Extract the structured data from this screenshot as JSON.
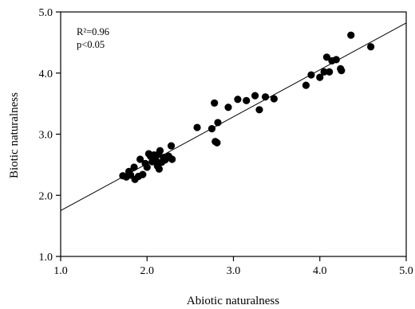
{
  "chart_data": {
    "type": "scatter",
    "xlabel": "Abiotic naturalness",
    "ylabel": "Biotic naturalness",
    "xlim": [
      1.0,
      5.0
    ],
    "ylim": [
      1.0,
      5.0
    ],
    "xticks": [
      "1.0",
      "2.0",
      "3.0",
      "4.0",
      "5.0"
    ],
    "yticks": [
      "1.0",
      "2.0",
      "3.0",
      "4.0",
      "5.0"
    ],
    "grid": false,
    "annotations": {
      "r2": "R²=0.96",
      "p": "p<0.05"
    },
    "trendline": {
      "x": [
        1.0,
        5.0
      ],
      "y": [
        1.75,
        4.82
      ]
    },
    "points": [
      [
        1.72,
        2.32
      ],
      [
        1.76,
        2.3
      ],
      [
        1.79,
        2.39
      ],
      [
        1.81,
        2.33
      ],
      [
        1.85,
        2.46
      ],
      [
        1.86,
        2.26
      ],
      [
        1.9,
        2.31
      ],
      [
        1.92,
        2.59
      ],
      [
        1.95,
        2.34
      ],
      [
        1.98,
        2.52
      ],
      [
        2.0,
        2.46
      ],
      [
        2.02,
        2.68
      ],
      [
        2.04,
        2.64
      ],
      [
        2.06,
        2.55
      ],
      [
        2.08,
        2.66
      ],
      [
        2.1,
        2.58
      ],
      [
        2.12,
        2.48
      ],
      [
        2.13,
        2.67
      ],
      [
        2.14,
        2.43
      ],
      [
        2.15,
        2.73
      ],
      [
        2.17,
        2.54
      ],
      [
        2.19,
        2.62
      ],
      [
        2.21,
        2.58
      ],
      [
        2.25,
        2.64
      ],
      [
        2.28,
        2.81
      ],
      [
        2.29,
        2.59
      ],
      [
        2.58,
        3.11
      ],
      [
        2.75,
        3.09
      ],
      [
        2.78,
        3.51
      ],
      [
        2.79,
        2.88
      ],
      [
        2.81,
        2.86
      ],
      [
        2.82,
        3.19
      ],
      [
        2.94,
        3.44
      ],
      [
        3.05,
        3.57
      ],
      [
        3.15,
        3.55
      ],
      [
        3.25,
        3.63
      ],
      [
        3.3,
        3.4
      ],
      [
        3.37,
        3.61
      ],
      [
        3.47,
        3.58
      ],
      [
        3.84,
        3.8
      ],
      [
        3.9,
        3.97
      ],
      [
        4.0,
        3.93
      ],
      [
        4.05,
        4.02
      ],
      [
        4.08,
        4.26
      ],
      [
        4.11,
        4.02
      ],
      [
        4.14,
        4.2
      ],
      [
        4.19,
        4.22
      ],
      [
        4.24,
        4.07
      ],
      [
        4.25,
        4.04
      ],
      [
        4.36,
        4.62
      ],
      [
        4.59,
        4.43
      ]
    ]
  }
}
